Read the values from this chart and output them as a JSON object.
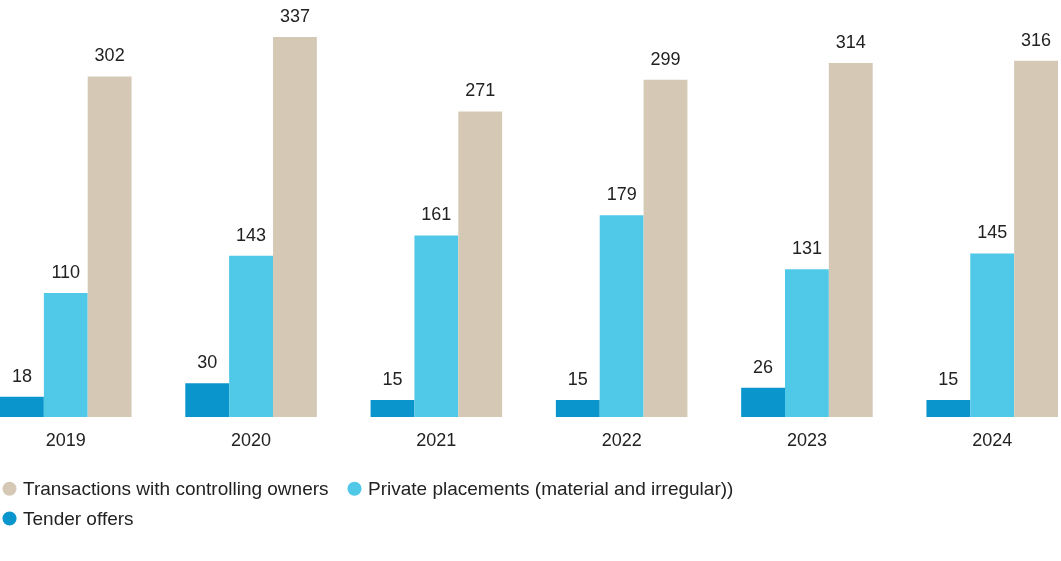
{
  "chart_data": {
    "type": "bar",
    "categories": [
      "2019",
      "2020",
      "2021",
      "2022",
      "2023",
      "2024"
    ],
    "series": [
      {
        "name": "Tender offers",
        "color": "#0a96cc",
        "values": [
          18,
          30,
          15,
          15,
          26,
          15
        ]
      },
      {
        "name": "Private placements (material and irregular))",
        "color": "#50c8e8",
        "values": [
          110,
          143,
          161,
          179,
          131,
          145
        ]
      },
      {
        "name": "Transactions with controlling owners",
        "color": "#d5c9b6",
        "values": [
          302,
          337,
          271,
          299,
          314,
          316
        ]
      }
    ],
    "data_labels": true,
    "legend": "bottom",
    "grid": false
  }
}
